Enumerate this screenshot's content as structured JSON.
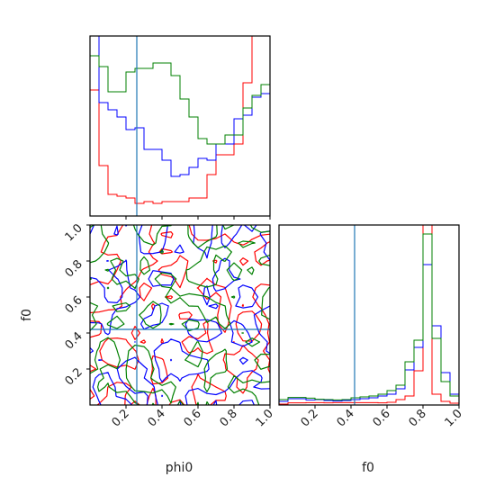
{
  "chart_data": {
    "type": "corner",
    "parameters": [
      "phi0",
      "f0"
    ],
    "truth": {
      "phi0": 0.26,
      "f0": 0.42
    },
    "truth_color": "#1f77b4",
    "series": [
      {
        "color": "#ff0000"
      },
      {
        "color": "#0000ff"
      },
      {
        "color": "#008000"
      }
    ],
    "axes": {
      "phi0": {
        "xlim": [
          0.0,
          1.0
        ],
        "ticks": [
          0.2,
          0.4,
          0.6,
          0.8,
          1.0
        ],
        "tick_labels": [
          "0.2",
          "0.4",
          "0.6",
          "0.8",
          "1.0"
        ],
        "xlabel": "phi0"
      },
      "f0": {
        "ylim": [
          0.0,
          1.0
        ],
        "yticks": [
          0.2,
          0.4,
          0.6,
          0.8,
          1.0
        ],
        "ytick_labels": [
          "0.2",
          "0.4",
          "0.6",
          "0.8",
          "1.0"
        ],
        "ylabel": "f0",
        "xlim": [
          0.0,
          1.0
        ],
        "xticks": [
          0.2,
          0.4,
          0.6,
          0.8,
          1.0
        ],
        "xtick_labels": [
          "0.2",
          "0.4",
          "0.6",
          "0.8",
          "1.0"
        ],
        "xlabel": "f0"
      }
    },
    "hist_phi0": {
      "bins": 20,
      "range": [
        0.0,
        1.0
      ],
      "counts": [
        [
          0.7,
          0.28,
          0.12,
          0.11,
          0.1,
          0.07,
          0.08,
          0.07,
          0.08,
          0.08,
          0.08,
          0.1,
          0.1,
          0.23,
          0.34,
          0.34,
          0.4,
          0.74,
          1.05,
          1.05
        ],
        [
          1.05,
          0.63,
          0.59,
          0.55,
          0.48,
          0.49,
          0.37,
          0.37,
          0.31,
          0.22,
          0.23,
          0.27,
          0.32,
          0.31,
          0.4,
          0.4,
          0.54,
          0.56,
          0.66,
          0.68
        ],
        [
          0.89,
          0.83,
          0.69,
          0.69,
          0.8,
          0.82,
          0.82,
          0.85,
          0.85,
          0.78,
          0.65,
          0.55,
          0.43,
          0.4,
          0.4,
          0.45,
          0.45,
          0.6,
          0.67,
          0.73
        ]
      ]
    },
    "hist_f0": {
      "bins": 20,
      "range": [
        0.0,
        1.0
      ],
      "counts": [
        [
          0.005,
          0.012,
          0.012,
          0.013,
          0.013,
          0.012,
          0.013,
          0.013,
          0.013,
          0.013,
          0.013,
          0.012,
          0.015,
          0.03,
          0.05,
          0.19,
          1.0,
          0.06,
          0.02,
          0.01
        ],
        [
          0.02,
          0.035,
          0.035,
          0.028,
          0.03,
          0.025,
          0.022,
          0.025,
          0.03,
          0.035,
          0.04,
          0.05,
          0.06,
          0.09,
          0.195,
          0.32,
          0.78,
          0.44,
          0.18,
          0.06
        ],
        [
          0.03,
          0.042,
          0.042,
          0.038,
          0.032,
          0.03,
          0.028,
          0.03,
          0.04,
          0.045,
          0.05,
          0.06,
          0.08,
          0.11,
          0.24,
          0.36,
          0.95,
          0.37,
          0.13,
          0.05
        ]
      ]
    },
    "contour_phi0_f0": {
      "grid_bins": 20,
      "density_seed": [
        11,
        23,
        37
      ]
    }
  }
}
